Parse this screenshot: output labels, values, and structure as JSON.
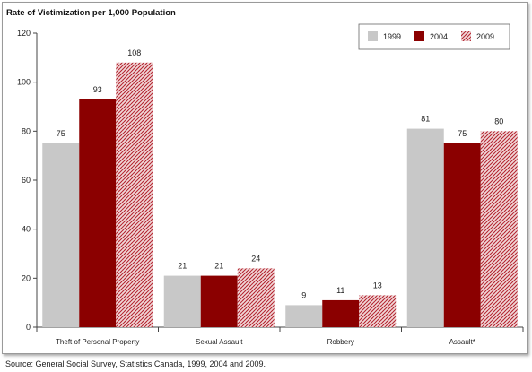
{
  "chart_data": {
    "type": "bar",
    "title": "Rate of Victimization per 1,000 Population",
    "categories": [
      "Theft of Personal Property",
      "Sexual Assault",
      "Robbery",
      "Assault*"
    ],
    "series": [
      {
        "name": "1999",
        "values": [
          75,
          21,
          9,
          81
        ],
        "color": "#c8c8c8",
        "pattern": "solid"
      },
      {
        "name": "2004",
        "values": [
          93,
          21,
          11,
          75
        ],
        "color": "#8b0000",
        "pattern": "solid"
      },
      {
        "name": "2009",
        "values": [
          108,
          24,
          13,
          80
        ],
        "color": "#b01e2a",
        "pattern": "crosshatch"
      }
    ],
    "ylim": [
      0,
      120
    ],
    "yticks": [
      0,
      20,
      40,
      60,
      80,
      100,
      120
    ],
    "grid": false,
    "legend_position": "top-right",
    "data_labels": true
  },
  "source": "Source:  General Social Survey, Statistics Canada, 1999, 2004 and 2009."
}
